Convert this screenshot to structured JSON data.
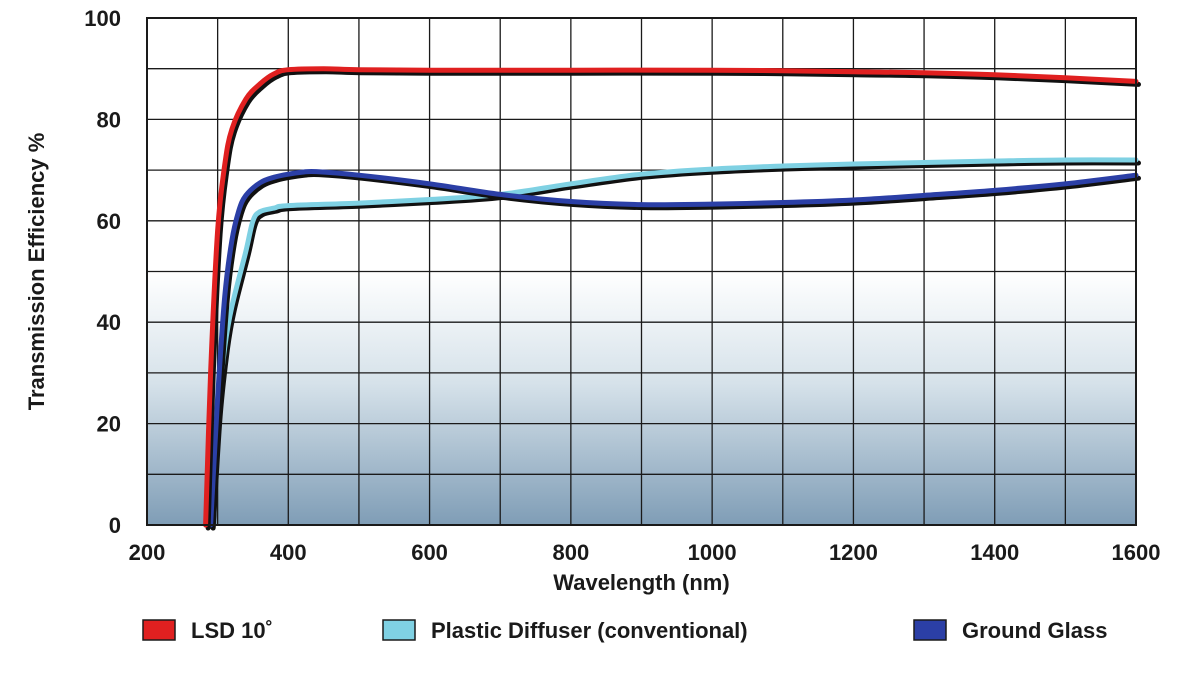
{
  "chart_data": {
    "type": "line",
    "title": "",
    "xlabel": "Wavelength (nm)",
    "ylabel": "Transmission Efficiency %",
    "xlim": [
      200,
      1600
    ],
    "ylim": [
      0,
      100
    ],
    "x_ticks": [
      200,
      400,
      600,
      800,
      1000,
      1200,
      1400,
      1600
    ],
    "y_ticks": [
      0,
      20,
      40,
      60,
      80,
      100
    ],
    "x_tick_labels": [
      "200",
      "400",
      "600",
      "800",
      "1000",
      "1200",
      "1400",
      "1600"
    ],
    "y_tick_labels": [
      "0",
      "20",
      "40",
      "60",
      "80",
      "100"
    ],
    "grid": true,
    "legend_position": "bottom",
    "series": [
      {
        "name": "LSD 10˚",
        "color": "#e02020",
        "x": [
          283,
          290,
          300,
          310,
          320,
          340,
          360,
          380,
          400,
          450,
          500,
          600,
          800,
          1000,
          1100,
          1200,
          1300,
          1400,
          1500,
          1600
        ],
        "y": [
          0,
          30,
          58,
          71,
          78,
          84,
          87,
          89,
          89.8,
          90,
          89.8,
          89.7,
          89.7,
          89.7,
          89.6,
          89.4,
          89.2,
          88.8,
          88.2,
          87.5
        ]
      },
      {
        "name": "Plastic Diffuser (conventional)",
        "color": "#7fd1e3",
        "x": [
          290,
          300,
          310,
          320,
          340,
          350,
          360,
          380,
          400,
          500,
          600,
          700,
          800,
          900,
          1000,
          1100,
          1200,
          1300,
          1400,
          1500,
          1600
        ],
        "y": [
          0,
          22,
          35,
          43,
          54,
          60,
          61.8,
          62.5,
          63,
          63.5,
          64.2,
          65.2,
          67.3,
          69.2,
          70.2,
          70.8,
          71.2,
          71.5,
          71.8,
          72,
          72
        ]
      },
      {
        "name": "Ground Glass",
        "color": "#2b3fa6",
        "x": [
          290,
          300,
          310,
          320,
          330,
          340,
          360,
          380,
          400,
          420,
          440,
          500,
          600,
          700,
          800,
          900,
          1000,
          1100,
          1200,
          1300,
          1400,
          1500,
          1600
        ],
        "y": [
          0,
          25,
          45,
          56,
          62,
          65,
          67.5,
          68.6,
          69.2,
          69.6,
          69.7,
          69,
          67.3,
          65.2,
          63.8,
          63.2,
          63.3,
          63.6,
          64.1,
          65,
          66,
          67.3,
          69
        ]
      }
    ]
  }
}
